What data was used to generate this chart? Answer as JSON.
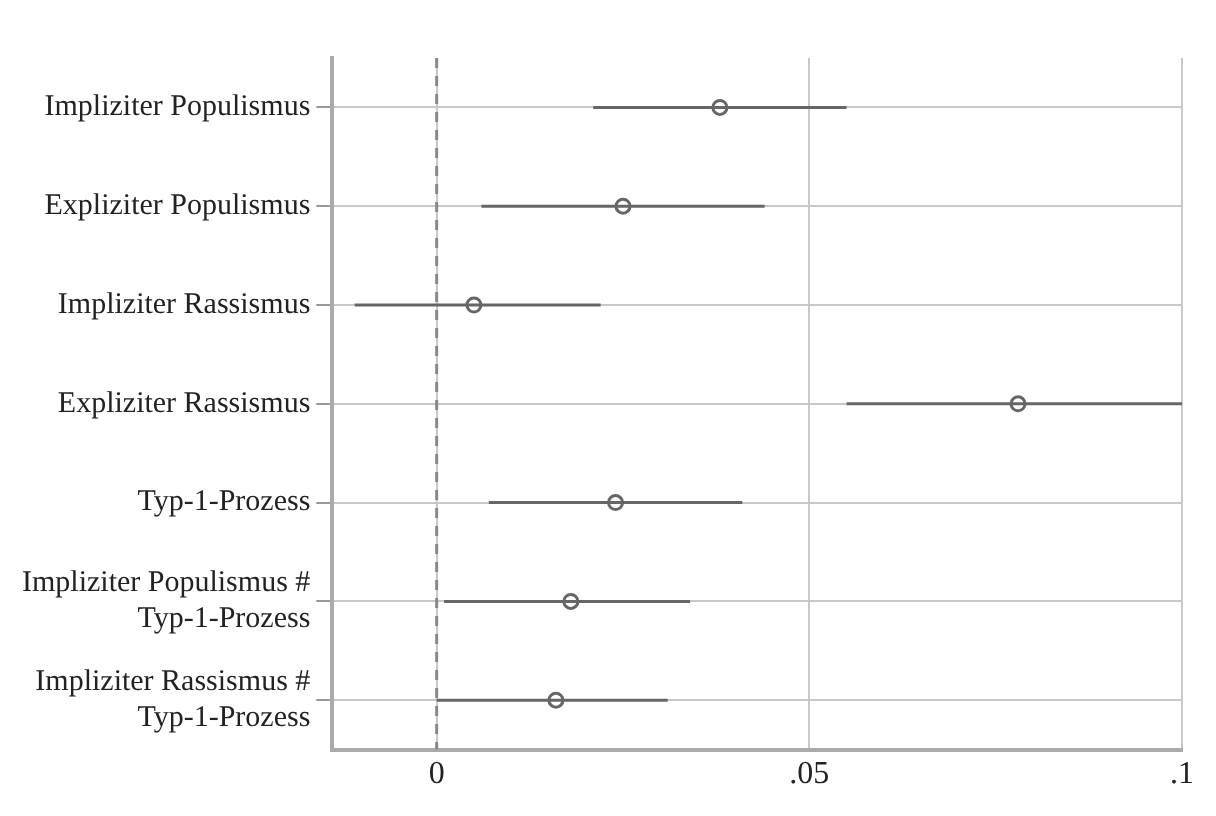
{
  "chart_data": {
    "type": "scatter",
    "orientation": "horizontal",
    "categories": [
      "Impliziter Populismus",
      "Expliziter Populismus",
      "Impliziter Rassismus",
      "Expliziter Rassismus",
      "Typ-1-Prozess",
      "Impliziter Populismus # Typ-1-Prozess",
      "Impliziter Rassismus # Typ-1-Prozess"
    ],
    "values": [
      0.038,
      0.025,
      0.005,
      0.078,
      0.024,
      0.018,
      0.016
    ],
    "errors": [
      [
        0.021,
        0.055
      ],
      [
        0.006,
        0.044
      ],
      [
        -0.011,
        0.022
      ],
      [
        0.055,
        0.1
      ],
      [
        0.007,
        0.041
      ],
      [
        0.001,
        0.034
      ],
      [
        0.0,
        0.031
      ]
    ],
    "color": "#666666",
    "xlim": [
      -0.014,
      0.1
    ],
    "xticks": [
      0,
      {
        "value": 0.05,
        "label": ".05"
      },
      {
        "value": 0.1,
        "label": ".1"
      }
    ],
    "ref_lines": [
      {
        "axis": "x",
        "value": 0,
        "color": "#888888",
        "line_style": "dashed"
      }
    ],
    "grid": true,
    "marker": "circle",
    "legend": false
  }
}
